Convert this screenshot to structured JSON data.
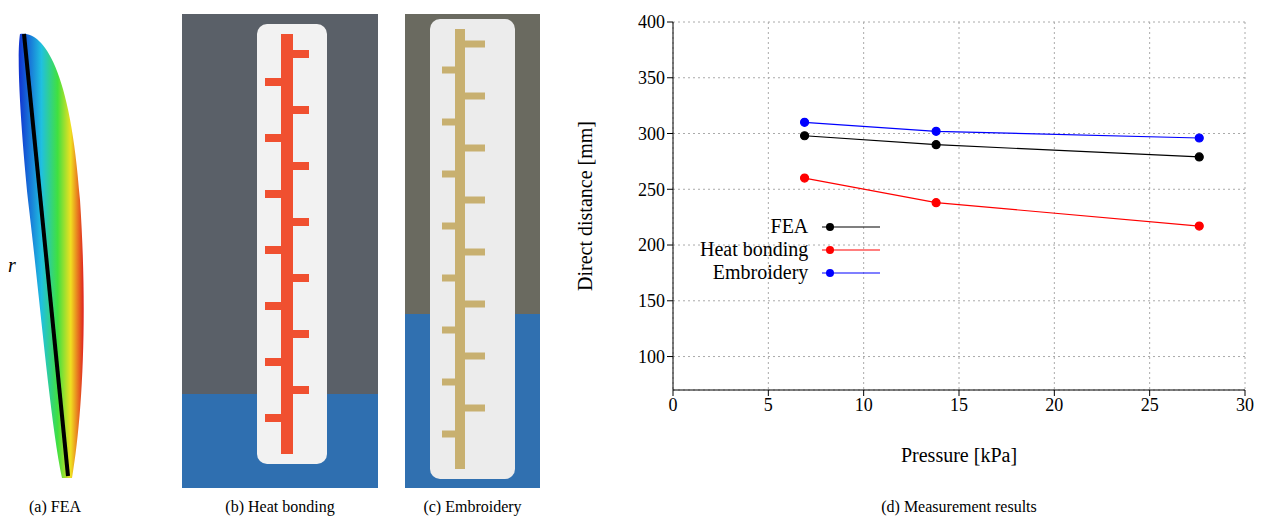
{
  "chart_data": {
    "type": "line",
    "caption": "(d) Measurement results",
    "x_label": "Pressure [kPa]",
    "y_label": "Direct distance [mm]",
    "x": [
      6.9,
      13.8,
      27.6
    ],
    "series": [
      {
        "name": "FEA",
        "color": "#000000",
        "values": [
          298,
          290,
          279
        ],
        "marker": "circle",
        "line_style": "solid"
      },
      {
        "name": "Heat bonding",
        "color": "#ff0000",
        "values": [
          260,
          238,
          217
        ],
        "marker": "circle",
        "line_style": "solid"
      },
      {
        "name": "Embroidery",
        "color": "#0000ff",
        "values": [
          310,
          302,
          296
        ],
        "marker": "circle",
        "line_style": "solid"
      }
    ],
    "xlim": [
      0,
      30
    ],
    "xticks": [
      0,
      5,
      10,
      15,
      20,
      25,
      30
    ],
    "ylim": [
      70,
      400
    ],
    "yticks": [
      100,
      150,
      200,
      250,
      300,
      350,
      400
    ],
    "grid": true,
    "legend": "lower left"
  },
  "panels": [
    {
      "caption": "(a) FEA",
      "label": "r"
    },
    {
      "caption": "(b) Heat bonding"
    },
    {
      "caption": "(c) Embroidery"
    }
  ]
}
